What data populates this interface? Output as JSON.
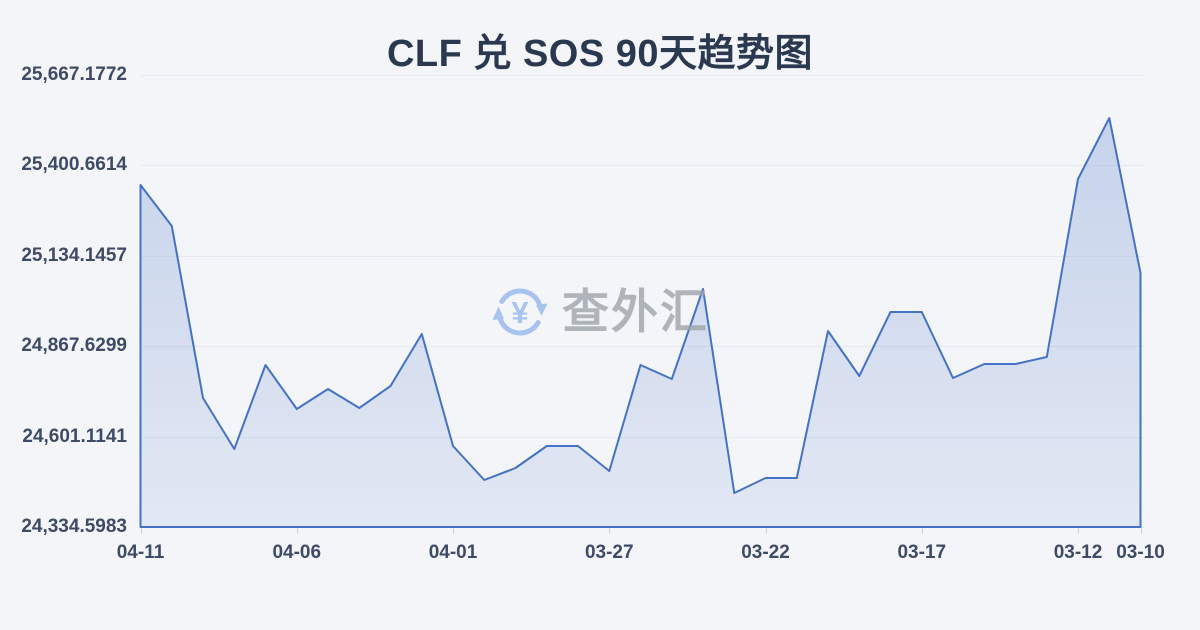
{
  "title": "CLF 兑 SOS 90天趋势图",
  "watermark": {
    "icon": "currency-exchange-icon",
    "text": "查外汇"
  },
  "colors": {
    "background": "#f4f5f9",
    "title_text": "#2b3950",
    "axis_text": "#3d4b66",
    "grid_line": "#e7eaf1",
    "tick_mark": "#cbd0da",
    "line": "#4472c4",
    "area_fill_top": "rgba(68,114,196,0.26)",
    "area_fill_bottom": "rgba(68,114,196,0.10)",
    "watermark_icon": "#a9c3ef",
    "watermark_text": "#9fa4ac"
  },
  "y_axis": {
    "labels": [
      "25,667.1772",
      "25,400.6614",
      "25,134.1457",
      "24,867.6299",
      "24,601.1141",
      "24,334.5983"
    ],
    "values": [
      25667.1772,
      25400.6614,
      25134.1457,
      24867.6299,
      24601.1141,
      24334.5983
    ]
  },
  "x_axis": {
    "tick_indices": [
      0,
      5,
      10,
      15,
      20,
      25,
      30,
      32
    ],
    "tick_labels": [
      "04-11",
      "04-06",
      "04-01",
      "03-27",
      "03-22",
      "03-17",
      "03-12",
      "03-10"
    ]
  },
  "chart_data": {
    "type": "area",
    "title": "CLF 兑 SOS 90天趋势图",
    "xlabel": "",
    "ylabel": "",
    "ylim": [
      24334.5983,
      25667.1772
    ],
    "grid": true,
    "legend": "none",
    "x": [
      "04-11",
      "04-10",
      "04-09",
      "04-08",
      "04-07",
      "04-06",
      "04-05",
      "04-04",
      "04-03",
      "04-02",
      "04-01",
      "03-31",
      "03-30",
      "03-29",
      "03-28",
      "03-27",
      "03-26",
      "03-25",
      "03-24",
      "03-23",
      "03-22",
      "03-21",
      "03-20",
      "03-19",
      "03-18",
      "03-17",
      "03-16",
      "03-15",
      "03-14",
      "03-13",
      "03-12",
      "03-11",
      "03-10"
    ],
    "values": [
      25342.9,
      25222.0,
      24714.9,
      24564.5,
      24812.2,
      24682.5,
      24741.4,
      24685.4,
      24750.3,
      24903.6,
      24573.4,
      24473.1,
      24508.5,
      24573.4,
      24573.4,
      24499.7,
      24812.2,
      24770.9,
      25036.3,
      24434.8,
      24479.0,
      24479.0,
      24912.4,
      24779.7,
      24968.4,
      24968.4,
      24773.8,
      24815.1,
      24815.1,
      24835.7,
      25360.5,
      25540.4,
      25083.5
    ]
  }
}
